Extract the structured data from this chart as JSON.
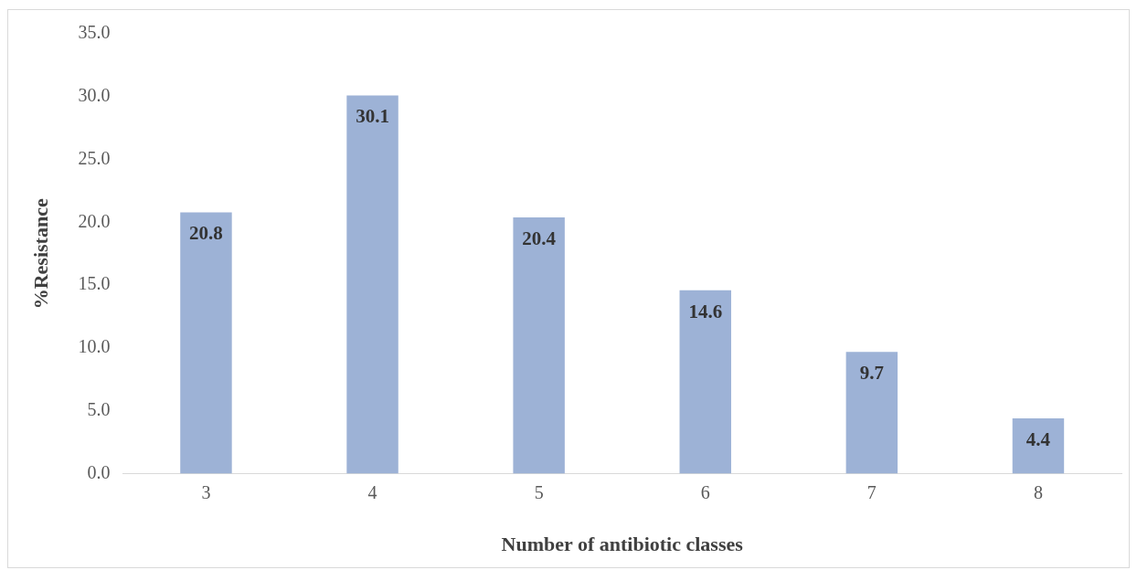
{
  "chart_data": {
    "type": "bar",
    "xlabel": "Number of antibiotic classes",
    "ylabel": "%Resistance",
    "categories": [
      "3",
      "4",
      "5",
      "6",
      "7",
      "8"
    ],
    "values": [
      20.8,
      30.1,
      20.4,
      14.6,
      9.7,
      4.4
    ],
    "color": "#9db2d6",
    "ylim": [
      0,
      35
    ],
    "yticks": [
      {
        "value": 0,
        "label": "0.0"
      },
      {
        "value": 5,
        "label": "5.0"
      },
      {
        "value": 10,
        "label": "10.0"
      },
      {
        "value": 15,
        "label": "15.0"
      },
      {
        "value": 20,
        "label": "20.0"
      },
      {
        "value": 25,
        "label": "25.0"
      },
      {
        "value": 30,
        "label": "30.0"
      },
      {
        "value": 35,
        "label": "35.0"
      }
    ],
    "grid": false,
    "legend": false,
    "data_labels": true
  }
}
